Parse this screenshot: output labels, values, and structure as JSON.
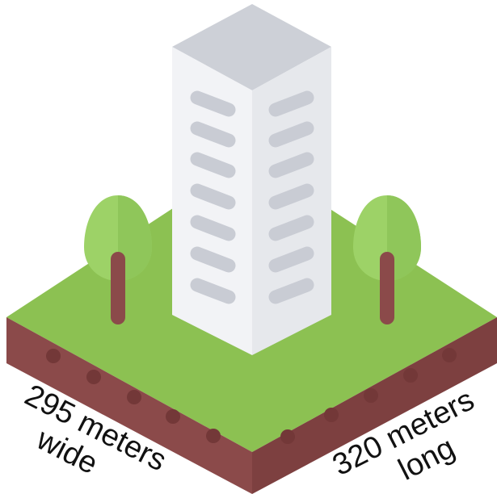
{
  "labels": {
    "width_line1": "295 meters",
    "width_line2": "wide",
    "length_line1": "320 meters",
    "length_line2": "long"
  },
  "colors": {
    "grass": "#8cc152",
    "soil": "#8b4a4a",
    "soil_dark": "#6e3535",
    "soil_dots": "#7a3c3c",
    "building_front": "#f1f2f5",
    "building_side": "#e4e6eb",
    "building_top": "#cdd0d7",
    "window": "#c9ccd4",
    "tree_canopy": "#9dd267",
    "tree_trunk": "#8b4a4a"
  },
  "icons": [
    "building-icon",
    "tree-icon"
  ]
}
